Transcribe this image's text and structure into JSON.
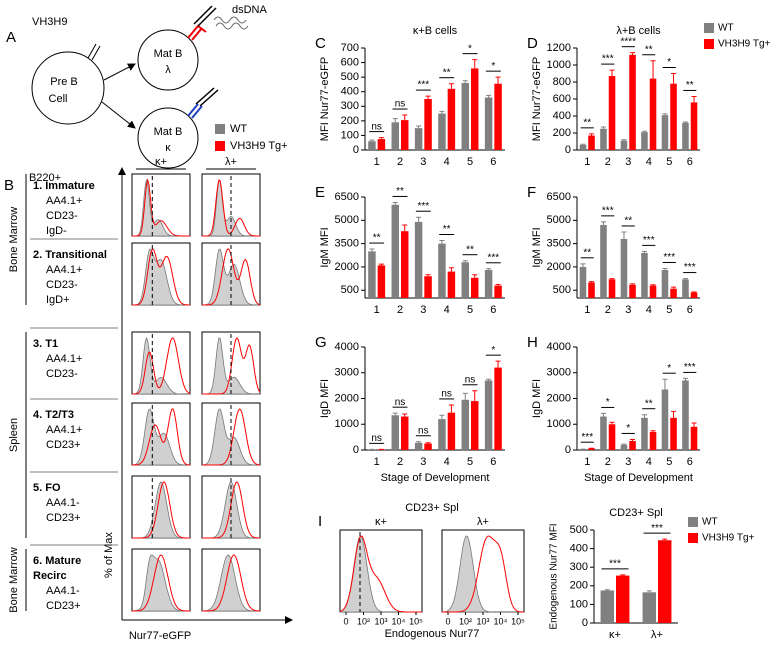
{
  "diagram": {
    "label": "A",
    "receptor": "VH3H9",
    "pre_b": [
      "Pre B",
      "Cell"
    ],
    "mat_lambda": [
      "Mat B",
      "λ"
    ],
    "mat_kappa": [
      "Mat B",
      "κ"
    ],
    "antigen": "dsDNA"
  },
  "flow_b": {
    "label": "B",
    "header": "B220+",
    "columns": [
      "κ+",
      "λ+"
    ],
    "legend": [
      "WT",
      "VH3H9 Tg+"
    ],
    "y_label": "% of Max",
    "x_label": "Nur77-eGFP",
    "groups": [
      "Bone Marrow",
      "Spleen",
      "Bone Marrow"
    ],
    "stages": [
      {
        "name": [
          "1. Immature"
        ],
        "markers": [
          "AA4.1+",
          "CD23-",
          "IgD-"
        ]
      },
      {
        "name": [
          "2. Transitional"
        ],
        "markers": [
          "AA4.1+",
          "CD23-",
          "IgD+"
        ]
      },
      {
        "name": [
          "3. T1"
        ],
        "markers": [
          "AA4.1+",
          "CD23-"
        ]
      },
      {
        "name": [
          "4. T2/T3"
        ],
        "markers": [
          "AA4.1+",
          "CD23+"
        ]
      },
      {
        "name": [
          "5. FO"
        ],
        "markers": [
          "AA4.1-",
          "CD23+"
        ]
      },
      {
        "name": [
          "6. Mature",
          "Recirc"
        ],
        "markers": [
          "AA4.1-",
          "CD23+"
        ]
      }
    ]
  },
  "flow_i": {
    "label": "I",
    "title": "CD23+ Spl",
    "columns": [
      "κ+",
      "λ+"
    ],
    "x_label": "Endogenous Nur77",
    "x_ticks": [
      "0",
      "10²",
      "10³",
      "10⁴",
      "10⁵"
    ]
  },
  "chart_data": [
    {
      "type": "bar",
      "label": "C",
      "title": "κ+B cells",
      "y_label": "MFI Nur77-eGFP",
      "categories": [
        "1",
        "2",
        "3",
        "4",
        "5",
        "6"
      ],
      "series": [
        {
          "color": "#808080",
          "values": [
            60,
            190,
            150,
            250,
            460,
            360
          ],
          "errors": [
            8,
            25,
            15,
            15,
            15,
            15
          ]
        },
        {
          "color": "#ff0000",
          "values": [
            75,
            205,
            350,
            420,
            560,
            455
          ],
          "errors": [
            10,
            35,
            20,
            35,
            60,
            45
          ]
        }
      ],
      "annotations": [
        "ns",
        "ns",
        "***",
        "**",
        "*",
        "*"
      ],
      "ylim": [
        0,
        700
      ],
      "yticks": [
        0,
        100,
        200,
        300,
        400,
        500,
        600,
        700
      ]
    },
    {
      "type": "bar",
      "label": "D",
      "title": "λ+B cells",
      "y_label": "MFI Nur77-eGFP",
      "categories": [
        "1",
        "2",
        "3",
        "4",
        "5",
        "6"
      ],
      "series": [
        {
          "name": "WT",
          "color": "#808080",
          "values": [
            60,
            250,
            110,
            210,
            410,
            320
          ],
          "errors": [
            8,
            20,
            10,
            10,
            15,
            10
          ]
        },
        {
          "name": "VH3H9 Tg+",
          "color": "#ff0000",
          "values": [
            170,
            870,
            1120,
            840,
            780,
            560
          ],
          "errors": [
            20,
            70,
            25,
            210,
            120,
            70
          ]
        }
      ],
      "annotations": [
        "**",
        "***",
        "****",
        "**",
        "*",
        "**"
      ],
      "ylim": [
        0,
        1200
      ],
      "yticks": [
        0,
        200,
        400,
        600,
        800,
        1000,
        1200
      ]
    },
    {
      "type": "bar",
      "label": "E",
      "y_label": "IgM MFI",
      "categories": [
        "1",
        "2",
        "3",
        "4",
        "5",
        "6"
      ],
      "series": [
        {
          "color": "#808080",
          "values": [
            3000,
            6000,
            4900,
            3500,
            2300,
            1800
          ],
          "errors": [
            150,
            150,
            300,
            200,
            100,
            80
          ]
        },
        {
          "color": "#ff0000",
          "values": [
            2100,
            4300,
            1400,
            1700,
            1300,
            800
          ],
          "errors": [
            80,
            400,
            100,
            250,
            200,
            80
          ]
        }
      ],
      "annotations": [
        "**",
        "**",
        "***",
        "**",
        "**",
        "***"
      ],
      "ylim": [
        0,
        6500
      ],
      "yticks": [
        500,
        2000,
        3500,
        5000,
        6500
      ]
    },
    {
      "type": "bar",
      "label": "F",
      "y_label": "IgM MFI",
      "categories": [
        "1",
        "2",
        "3",
        "4",
        "5",
        "6"
      ],
      "series": [
        {
          "color": "#808080",
          "values": [
            2000,
            4700,
            3800,
            2900,
            1800,
            1200
          ],
          "errors": [
            200,
            200,
            450,
            100,
            100,
            50
          ]
        },
        {
          "color": "#ff0000",
          "values": [
            1000,
            1200,
            850,
            800,
            600,
            350
          ],
          "errors": [
            50,
            50,
            60,
            50,
            100,
            40
          ]
        }
      ],
      "annotations": [
        "**",
        "***",
        "**",
        "***",
        "***",
        "***"
      ],
      "ylim": [
        0,
        6500
      ],
      "yticks": [
        500,
        2000,
        3500,
        5000,
        6500
      ]
    },
    {
      "type": "bar",
      "label": "G",
      "y_label": "IgD MFI",
      "x_label": "Stage of Development",
      "categories": [
        "1",
        "2",
        "3",
        "4",
        "5",
        "6"
      ],
      "series": [
        {
          "color": "#808080",
          "values": [
            20,
            1350,
            280,
            1200,
            1950,
            2700
          ],
          "errors": [
            5,
            80,
            40,
            150,
            250,
            50
          ]
        },
        {
          "color": "#ff0000",
          "values": [
            20,
            1300,
            250,
            1450,
            1900,
            3200
          ],
          "errors": [
            5,
            100,
            30,
            300,
            400,
            250
          ]
        }
      ],
      "annotations": [
        "ns",
        "ns",
        "ns",
        "ns",
        "ns",
        "*"
      ],
      "ylim": [
        0,
        4000
      ],
      "yticks": [
        0,
        1000,
        2000,
        3000,
        4000
      ]
    },
    {
      "type": "bar",
      "label": "H",
      "y_label": "IgD MFI",
      "x_label": "Stage of Development",
      "categories": [
        "1",
        "2",
        "3",
        "4",
        "5",
        "6"
      ],
      "series": [
        {
          "color": "#808080",
          "values": [
            30,
            1300,
            200,
            1250,
            2350,
            2700
          ],
          "errors": [
            5,
            120,
            30,
            120,
            400,
            80
          ]
        },
        {
          "color": "#ff0000",
          "values": [
            60,
            1000,
            350,
            700,
            1250,
            900
          ],
          "errors": [
            10,
            80,
            60,
            50,
            250,
            150
          ]
        }
      ],
      "annotations": [
        "***",
        "*",
        "*",
        "**",
        "*",
        "***"
      ],
      "ylim": [
        0,
        4000
      ],
      "yticks": [
        0,
        1000,
        2000,
        3000,
        4000
      ]
    },
    {
      "type": "bar",
      "title": "CD23+ Spl",
      "y_label": "Endogenous Nur77 MFI",
      "categories": [
        "κ+",
        "λ+"
      ],
      "series": [
        {
          "name": "WT",
          "color": "#808080",
          "values": [
            175,
            165
          ],
          "errors": [
            4,
            8
          ]
        },
        {
          "name": "VH3H9 Tg+",
          "color": "#ff0000",
          "values": [
            255,
            445
          ],
          "errors": [
            4,
            6
          ]
        }
      ],
      "annotations": [
        "***",
        "***"
      ],
      "ylim": [
        0,
        500
      ],
      "yticks": [
        0,
        100,
        200,
        300,
        400,
        500
      ]
    }
  ]
}
